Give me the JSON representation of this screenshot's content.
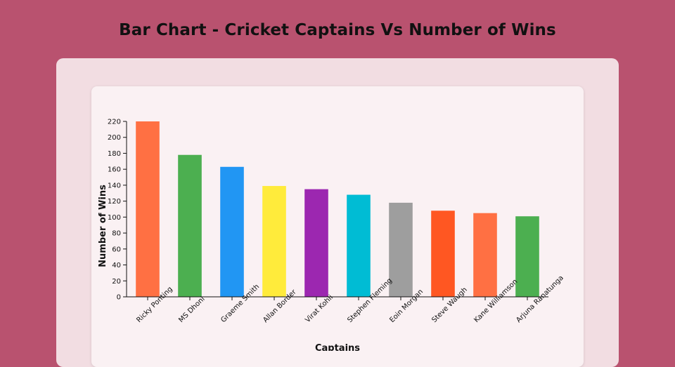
{
  "page": {
    "title": "Bar Chart - Cricket Captains Vs Number of Wins",
    "background_color": "#b9526f"
  },
  "chart_data": {
    "type": "bar",
    "title": "Bar Chart - Cricket Captains Vs Number of Wins",
    "xlabel": "Captains",
    "ylabel": "Number of Wins",
    "ylim": [
      0,
      220
    ],
    "yticks": [
      0,
      20,
      40,
      60,
      80,
      100,
      120,
      140,
      160,
      180,
      200,
      220
    ],
    "grid": false,
    "categories": [
      "Ricky Ponting",
      "MS Dhoni",
      "Graeme Smith",
      "Allan Border",
      "Virat Kohli",
      "Stephen Fleming",
      "Eoin Morgan",
      "Steve Waugh",
      "Kane Williamson",
      "Arjuna Ranatunga"
    ],
    "values": [
      220,
      178,
      163,
      139,
      135,
      128,
      118,
      108,
      105,
      101
    ],
    "colors": [
      "#ff7043",
      "#4caf50",
      "#2196f3",
      "#ffeb3b",
      "#9c27b0",
      "#00bcd4",
      "#9e9e9e",
      "#ff5722",
      "#ff7043",
      "#4caf50"
    ]
  }
}
